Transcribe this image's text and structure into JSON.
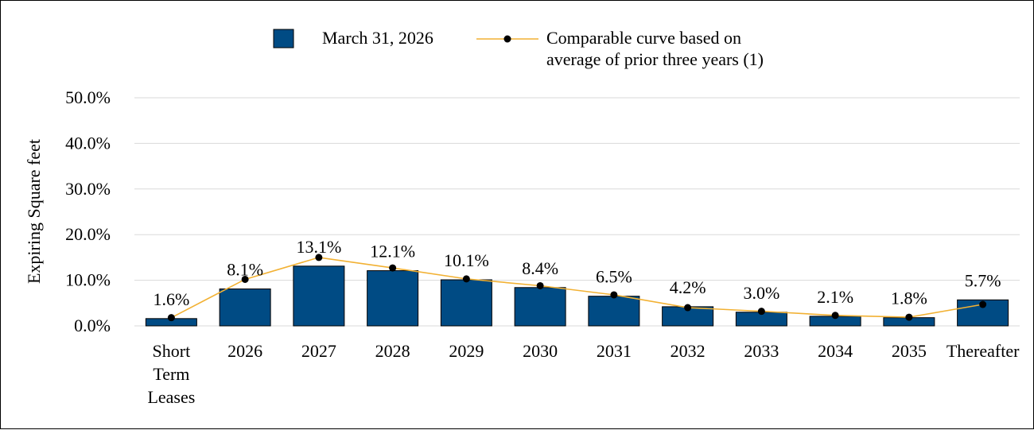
{
  "chart_data": {
    "type": "bar",
    "categories": [
      "Short Term Leases",
      "2026",
      "2027",
      "2028",
      "2029",
      "2030",
      "2031",
      "2032",
      "2033",
      "2034",
      "2035",
      "Thereafter"
    ],
    "category_lines": [
      [
        "Short",
        "Term",
        "Leases"
      ],
      [
        "2026"
      ],
      [
        "2027"
      ],
      [
        "2028"
      ],
      [
        "2029"
      ],
      [
        "2030"
      ],
      [
        "2031"
      ],
      [
        "2032"
      ],
      [
        "2033"
      ],
      [
        "2034"
      ],
      [
        "2035"
      ],
      [
        "Thereafter"
      ]
    ],
    "series": [
      {
        "name": "March 31, 2026",
        "type": "bar",
        "color": "#004B84",
        "values": [
          1.6,
          8.1,
          13.1,
          12.1,
          10.1,
          8.4,
          6.5,
          4.2,
          3.0,
          2.1,
          1.8,
          5.7
        ],
        "labels": [
          "1.6%",
          "8.1%",
          "13.1%",
          "12.1%",
          "10.1%",
          "8.4%",
          "6.5%",
          "4.2%",
          "3.0%",
          "2.1%",
          "1.8%",
          "5.7%"
        ]
      },
      {
        "name": "Comparable curve based on average of prior three years (1)",
        "name_lines": [
          "Comparable curve based on",
          "average of prior three years (1)"
        ],
        "type": "line",
        "color": "#F2B133",
        "marker_color": "#000000",
        "values": [
          1.8,
          10.2,
          15.0,
          12.7,
          10.3,
          8.8,
          6.8,
          4.0,
          3.2,
          2.3,
          1.9,
          4.7
        ]
      }
    ],
    "ylabel": "Expiring Square feet",
    "ylim": [
      0,
      50
    ],
    "yticks": [
      "0.0%",
      "10.0%",
      "20.0%",
      "30.0%",
      "40.0%",
      "50.0%"
    ],
    "ytick_values": [
      0,
      10,
      20,
      30,
      40,
      50
    ],
    "grid": true,
    "legend_position": "top-center"
  }
}
